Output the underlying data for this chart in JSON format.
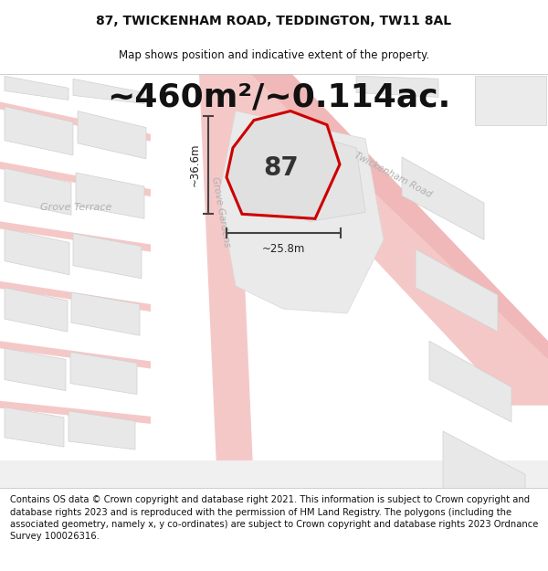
{
  "title_line1": "87, TWICKENHAM ROAD, TEDDINGTON, TW11 8AL",
  "title_line2": "Map shows position and indicative extent of the property.",
  "area_text": "~460m²/~0.114ac.",
  "property_number": "87",
  "dim_height": "~36.6m",
  "dim_width": "~25.8m",
  "footer_text": "Contains OS data © Crown copyright and database right 2021. This information is subject to Crown copyright and database rights 2023 and is reproduced with the permission of HM Land Registry. The polygons (including the associated geometry, namely x, y co-ordinates) are subject to Crown copyright and database rights 2023 Ordnance Survey 100026316.",
  "bg_color": "#ffffff",
  "road_color": "#f5c8c8",
  "road_color2": "#f0b8b8",
  "block_color": "#e8e8e8",
  "block_edge": "#d0d0d0",
  "property_fill": "#e0e0e0",
  "property_outline": "#cc0000",
  "dim_color": "#444444",
  "street_label_color": "#b0b0b0",
  "title_fontsize": 10,
  "subtitle_fontsize": 8.5,
  "area_fontsize": 26,
  "prop_num_fontsize": 20,
  "street_fontsize": 8,
  "dim_fontsize": 8.5,
  "footer_fontsize": 7.2
}
